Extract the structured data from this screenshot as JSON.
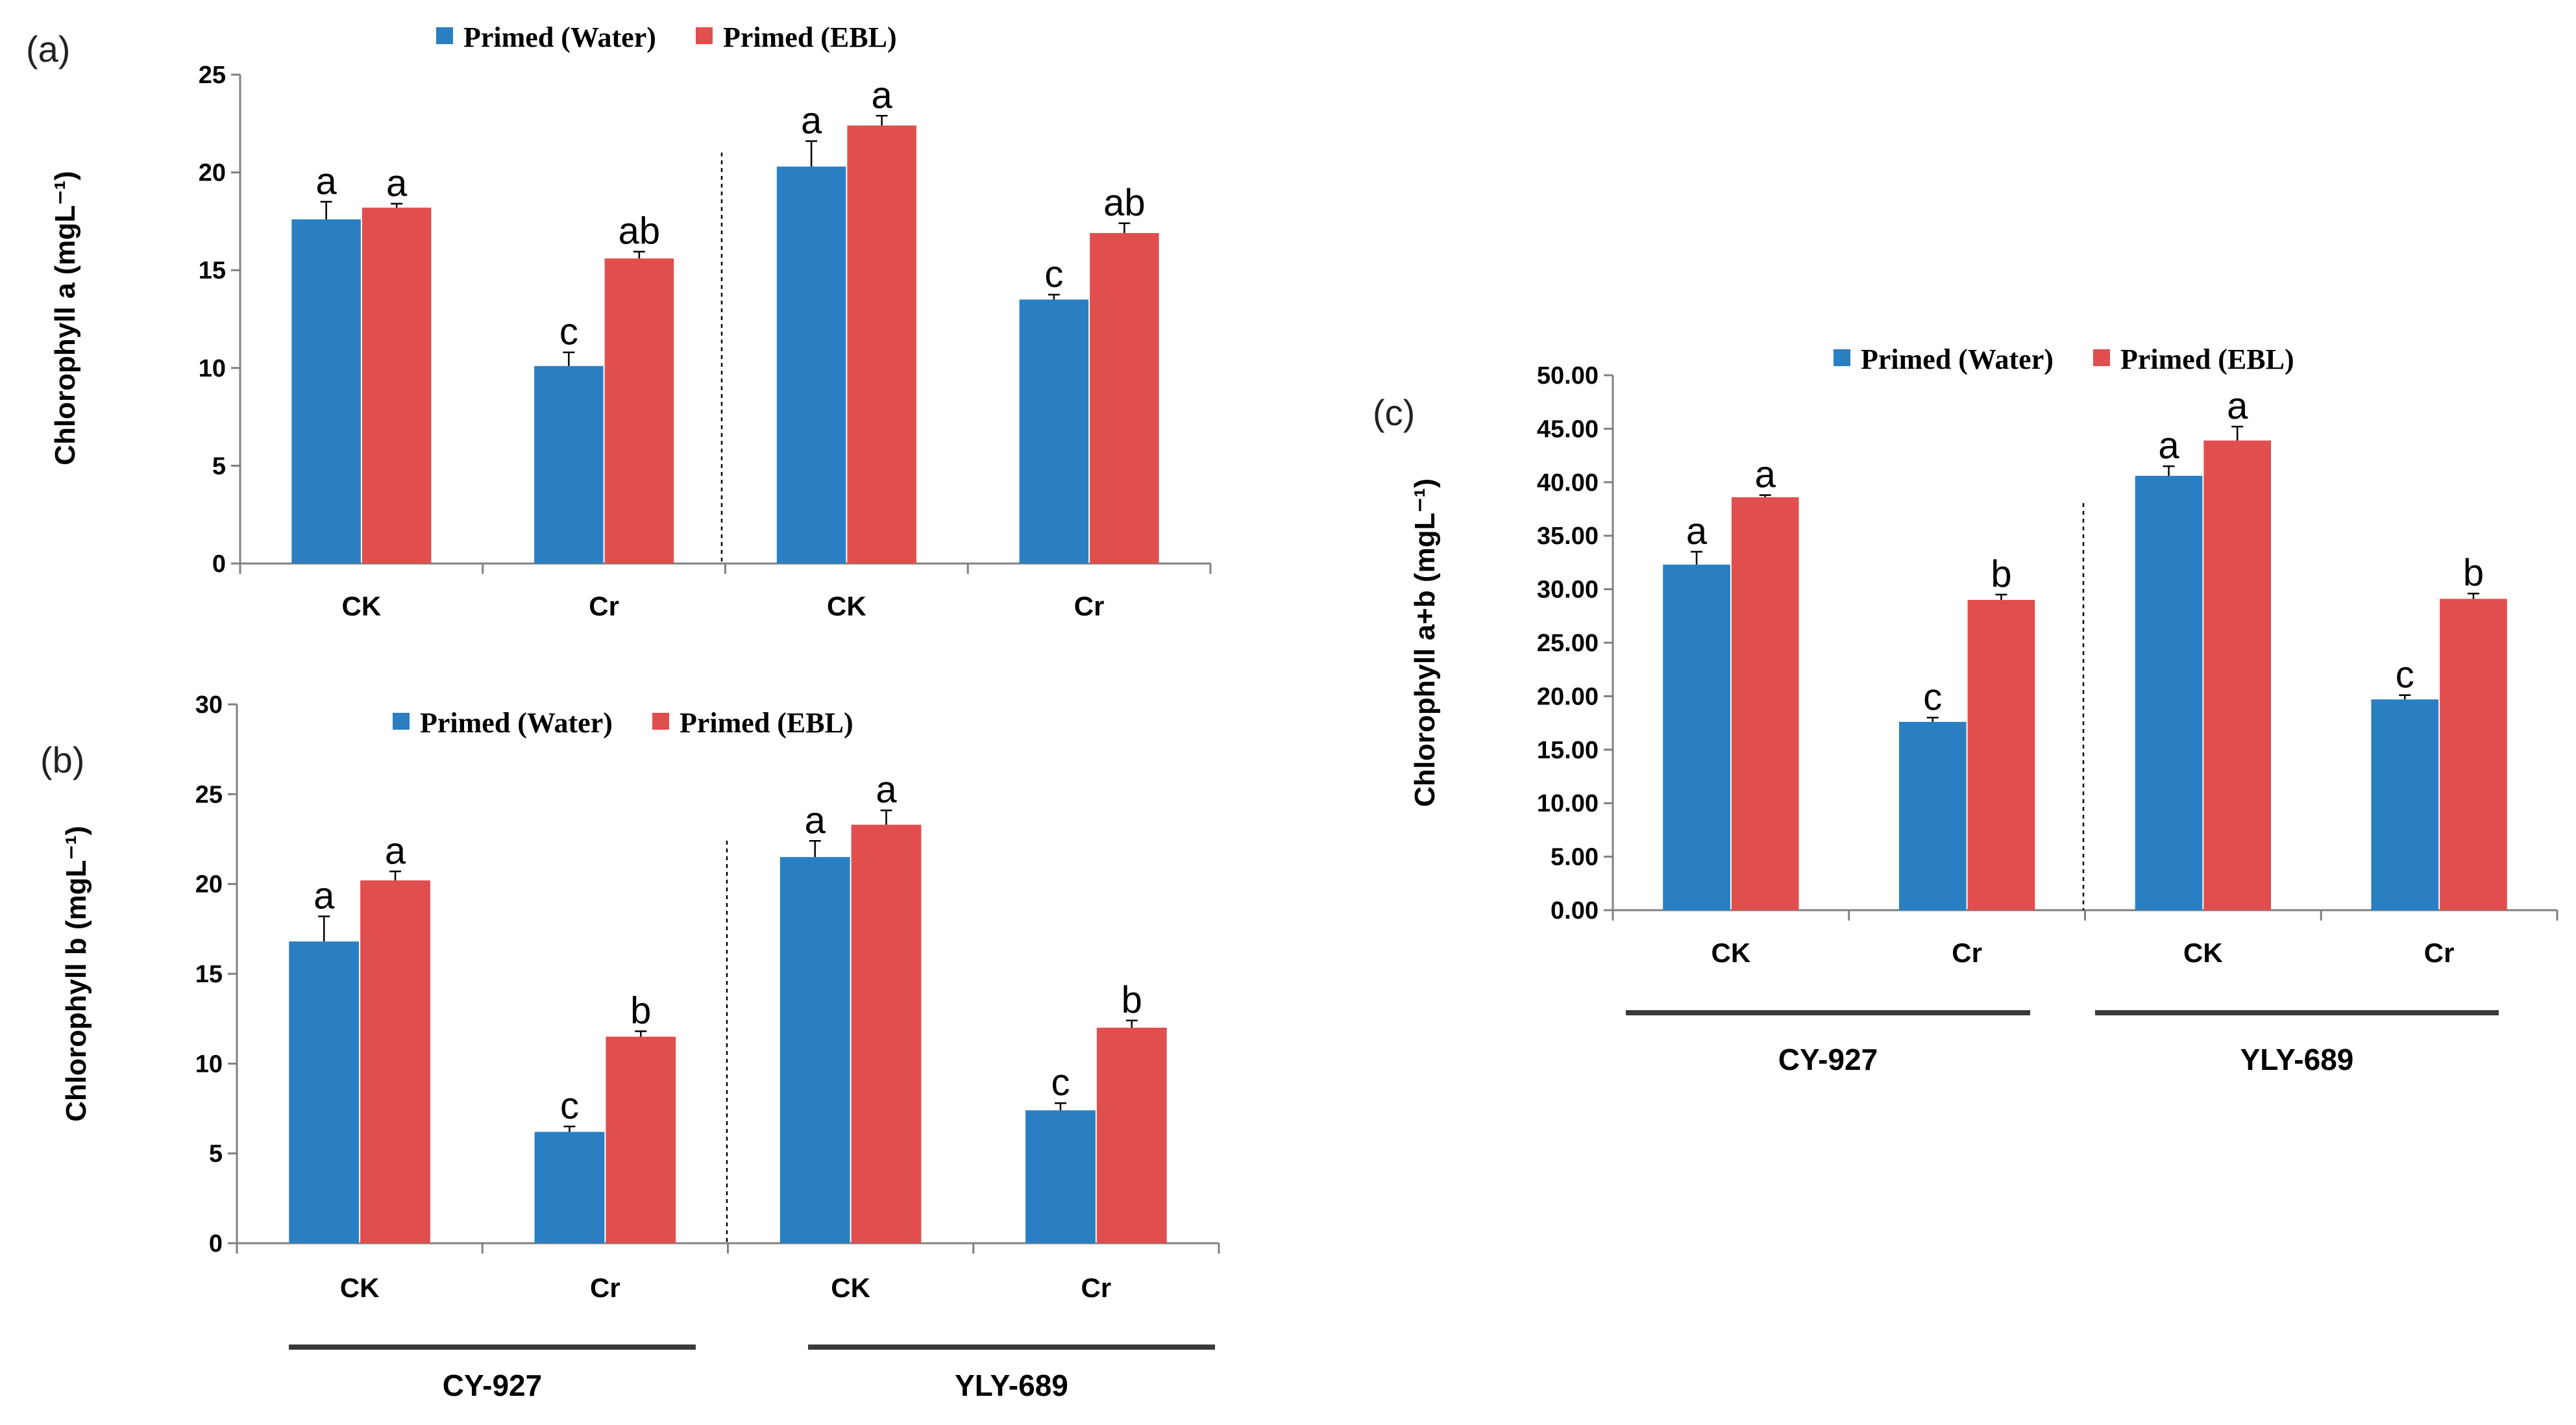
{
  "chart_data": [
    {
      "id": "a",
      "type": "bar",
      "panel_label": "(a)",
      "ylabel": "Chlorophyll a (mgL⁻¹)",
      "ylim": [
        0,
        25
      ],
      "yticks": [
        "0",
        "5",
        "10",
        "15",
        "20",
        "25"
      ],
      "categories": [
        "CK",
        "Cr",
        "CK",
        "Cr"
      ],
      "groups": [],
      "series": [
        {
          "name": "Primed (Water)",
          "color": "#2A7FC2",
          "values": [
            17.6,
            10.1,
            20.3,
            13.5
          ],
          "errors": [
            0.9,
            0.7,
            1.3,
            0.25
          ],
          "letters": [
            "a",
            "c",
            "a",
            "c"
          ]
        },
        {
          "name": "Primed (EBL)",
          "color": "#E04E4E",
          "values": [
            18.2,
            15.6,
            22.4,
            16.9
          ],
          "errors": [
            0.2,
            0.35,
            0.5,
            0.5
          ],
          "letters": [
            "a",
            "ab",
            "a",
            "ab"
          ]
        }
      ]
    },
    {
      "id": "b",
      "type": "bar",
      "panel_label": "(b)",
      "ylabel": "Chlorophyll b (mgL⁻¹)",
      "ylim": [
        0,
        30
      ],
      "yticks": [
        "0",
        "5",
        "10",
        "15",
        "20",
        "25",
        "30"
      ],
      "categories": [
        "CK",
        "Cr",
        "CK",
        "Cr"
      ],
      "groups": [
        "CY-927",
        "YLY-689"
      ],
      "series": [
        {
          "name": "Primed (Water)",
          "color": "#2A7FC2",
          "values": [
            16.8,
            6.2,
            21.5,
            7.4
          ],
          "errors": [
            1.4,
            0.3,
            0.9,
            0.4
          ],
          "letters": [
            "a",
            "c",
            "a",
            "c"
          ]
        },
        {
          "name": "Primed (EBL)",
          "color": "#E04E4E",
          "values": [
            20.2,
            11.5,
            23.3,
            12.0
          ],
          "errors": [
            0.5,
            0.3,
            0.8,
            0.4
          ],
          "letters": [
            "a",
            "b",
            "a",
            "b"
          ]
        }
      ]
    },
    {
      "id": "c",
      "type": "bar",
      "panel_label": "(c)",
      "ylabel": "Chlorophyll a+b (mgL⁻¹)",
      "ylim": [
        0,
        50
      ],
      "yticks": [
        "0.00",
        "5.00",
        "10.00",
        "15.00",
        "20.00",
        "25.00",
        "30.00",
        "35.00",
        "40.00",
        "45.00",
        "50.00"
      ],
      "categories": [
        "CK",
        "Cr",
        "CK",
        "Cr"
      ],
      "groups": [
        "CY-927",
        "YLY-689"
      ],
      "series": [
        {
          "name": "Primed (Water)",
          "color": "#2A7FC2",
          "values": [
            32.3,
            17.6,
            40.6,
            19.7
          ],
          "errors": [
            1.2,
            0.4,
            0.9,
            0.4
          ],
          "letters": [
            "a",
            "c",
            "a",
            "c"
          ]
        },
        {
          "name": "Primed (EBL)",
          "color": "#E04E4E",
          "values": [
            38.6,
            29.0,
            43.9,
            29.1
          ],
          "errors": [
            0.2,
            0.5,
            1.3,
            0.5
          ],
          "letters": [
            "a",
            "b",
            "a",
            "b"
          ]
        }
      ]
    }
  ]
}
